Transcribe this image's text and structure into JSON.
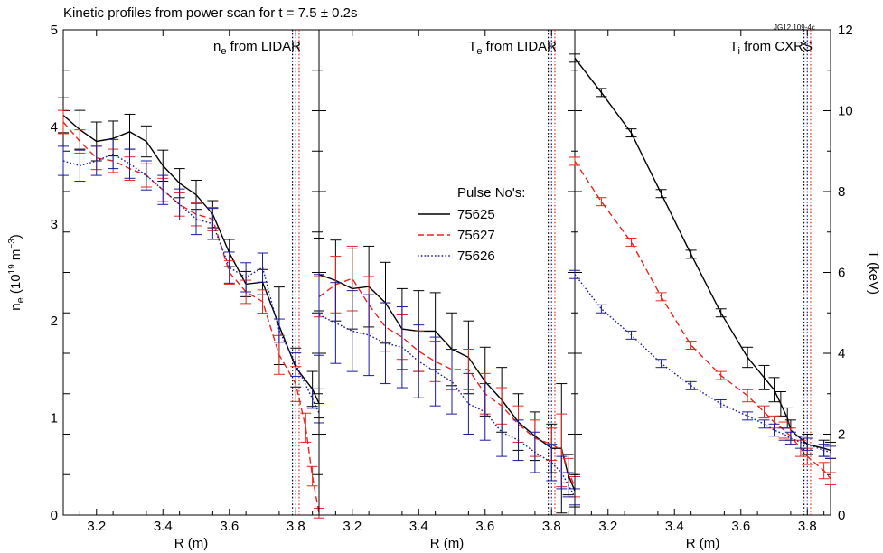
{
  "title": "Kinetic profiles from power scan for t = 7.5 ± 0.2s",
  "figure_tag": "JG12.109-4c",
  "legend": {
    "title": "Pulse No's:",
    "entries": [
      {
        "label": "75625",
        "color": "#000000",
        "dash": "solid"
      },
      {
        "label": "75627",
        "color": "#e8241c",
        "dash": "dashed"
      },
      {
        "label": "75626",
        "color": "#1a1aa0",
        "dash": "dotted"
      }
    ]
  },
  "chart_data": [
    {
      "type": "line",
      "title": "n_e from LIDAR",
      "title_main": "n",
      "title_sub": "e",
      "title_rest": " from LIDAR",
      "xlabel": "R (m)",
      "ylabel": "n_e (10^19 m^-3)",
      "ylabel_parts": {
        "n": "n",
        "sub": "e",
        "mid": " (10",
        "sup1": "19",
        "mid2": " m",
        "sup2": "−3",
        "end": ")"
      },
      "xlim": [
        3.1,
        3.87
      ],
      "ylim": [
        0,
        5
      ],
      "xticks": [
        3.2,
        3.4,
        3.6,
        3.8
      ],
      "xtick_labels": [
        "3.2",
        "3.4",
        "3.6",
        "3.8"
      ],
      "yticks": [
        0,
        1,
        2,
        3,
        4,
        5
      ],
      "ytick_labels": [
        "0",
        "1",
        "2",
        "3",
        "4",
        "5"
      ],
      "vlines": [
        3.79,
        3.8,
        3.81
      ],
      "series": [
        {
          "name": "75625",
          "x": [
            3.1,
            3.15,
            3.2,
            3.25,
            3.3,
            3.35,
            3.4,
            3.45,
            3.5,
            3.55,
            3.6,
            3.65,
            3.7,
            3.75,
            3.8,
            3.85,
            3.87
          ],
          "y": [
            4.12,
            3.97,
            3.85,
            3.88,
            3.95,
            3.85,
            3.6,
            3.42,
            3.3,
            3.1,
            2.7,
            2.38,
            2.4,
            1.95,
            1.52,
            1.3,
            1.15
          ],
          "err": [
            0.18,
            0.2,
            0.2,
            0.18,
            0.18,
            0.16,
            0.16,
            0.15,
            0.15,
            0.14,
            0.14,
            0.13,
            0.13,
            0.4,
            0.2,
            0.18,
            0.15
          ]
        },
        {
          "name": "75627",
          "x": [
            3.1,
            3.15,
            3.2,
            3.25,
            3.3,
            3.35,
            3.4,
            3.45,
            3.5,
            3.55,
            3.6,
            3.65,
            3.7,
            3.75,
            3.8,
            3.83,
            3.85,
            3.87
          ],
          "y": [
            4.05,
            3.85,
            3.68,
            3.65,
            3.57,
            3.5,
            3.35,
            3.2,
            3.1,
            3.05,
            2.5,
            2.3,
            2.2,
            1.65,
            1.35,
            0.9,
            0.4,
            0.02
          ],
          "err": [
            0.12,
            0.12,
            0.12,
            0.12,
            0.12,
            0.12,
            0.12,
            0.12,
            0.12,
            0.12,
            0.12,
            0.12,
            0.12,
            0.2,
            0.18,
            0.15,
            0.1,
            0.05
          ]
        },
        {
          "name": "75626",
          "x": [
            3.1,
            3.15,
            3.2,
            3.25,
            3.3,
            3.35,
            3.4,
            3.45,
            3.5,
            3.55,
            3.6,
            3.65,
            3.7,
            3.75,
            3.8,
            3.85,
            3.87
          ],
          "y": [
            3.65,
            3.6,
            3.65,
            3.72,
            3.62,
            3.5,
            3.35,
            3.2,
            3.05,
            3.0,
            2.55,
            2.45,
            2.55,
            1.9,
            1.55,
            1.2,
            1.05
          ],
          "err": [
            0.15,
            0.16,
            0.15,
            0.15,
            0.15,
            0.15,
            0.15,
            0.16,
            0.16,
            0.16,
            0.16,
            0.15,
            0.15,
            0.12,
            0.12,
            0.1,
            0.1
          ]
        }
      ]
    },
    {
      "type": "line",
      "title": "T_e from LIDAR",
      "title_main": "T",
      "title_sub": "e",
      "title_rest": " from LIDAR",
      "xlabel": "R (m)",
      "xlim": [
        3.1,
        3.87
      ],
      "ylim": [
        0,
        12
      ],
      "xticks": [
        3.2,
        3.4,
        3.6,
        3.8
      ],
      "xtick_labels": [
        "3.2",
        "3.4",
        "3.6",
        "3.8"
      ],
      "vlines": [
        3.79,
        3.8,
        3.81
      ],
      "series": [
        {
          "name": "75625",
          "x": [
            3.1,
            3.15,
            3.2,
            3.25,
            3.3,
            3.35,
            3.4,
            3.45,
            3.5,
            3.55,
            3.6,
            3.65,
            3.7,
            3.75,
            3.8,
            3.83,
            3.85,
            3.87
          ],
          "y": [
            5.95,
            5.8,
            5.6,
            5.65,
            5.25,
            4.6,
            4.55,
            4.55,
            4.1,
            3.9,
            3.3,
            2.85,
            2.3,
            1.95,
            1.65,
            1.65,
            1.0,
            0.6
          ],
          "err": [
            0.9,
            1.0,
            1.0,
            1.0,
            1.0,
            1.0,
            1.0,
            0.95,
            0.9,
            0.9,
            0.85,
            0.8,
            0.7,
            0.6,
            0.6,
            1.6,
            0.5,
            0.4
          ]
        },
        {
          "name": "75627",
          "x": [
            3.1,
            3.15,
            3.2,
            3.25,
            3.3,
            3.35,
            3.4,
            3.45,
            3.5,
            3.55,
            3.6,
            3.65,
            3.7,
            3.75,
            3.8,
            3.83,
            3.85,
            3.87
          ],
          "y": [
            5.4,
            5.7,
            5.85,
            5.2,
            4.65,
            4.4,
            4.05,
            3.8,
            3.6,
            3.6,
            3.0,
            2.7,
            2.25,
            1.9,
            1.75,
            1.6,
            1.1,
            0.7
          ],
          "err": [
            0.5,
            0.7,
            0.8,
            0.7,
            0.6,
            0.55,
            0.5,
            0.5,
            0.5,
            0.5,
            0.5,
            0.45,
            0.45,
            0.45,
            0.4,
            0.9,
            0.3,
            0.25
          ]
        },
        {
          "name": "75626",
          "x": [
            3.1,
            3.15,
            3.2,
            3.25,
            3.3,
            3.35,
            3.4,
            3.45,
            3.5,
            3.55,
            3.6,
            3.65,
            3.7,
            3.75,
            3.8,
            3.83,
            3.85,
            3.87
          ],
          "y": [
            4.95,
            4.75,
            4.55,
            4.45,
            4.25,
            4.15,
            3.8,
            3.55,
            3.3,
            2.75,
            2.55,
            2.05,
            1.85,
            1.55,
            1.3,
            1.05,
            0.75,
            0.45
          ],
          "err": [
            1.0,
            1.0,
            1.0,
            1.0,
            1.0,
            1.0,
            0.9,
            0.85,
            0.8,
            0.75,
            0.7,
            0.6,
            0.5,
            0.5,
            0.45,
            0.4,
            0.3,
            0.2
          ]
        }
      ]
    },
    {
      "type": "line",
      "title": "T_i from CXRS",
      "title_main": "T",
      "title_sub": "i",
      "title_rest": " from CXRS",
      "xlabel": "R (m)",
      "ylabel": "T (keV)",
      "xlim": [
        3.1,
        3.87
      ],
      "ylim": [
        0,
        12
      ],
      "xticks": [
        3.2,
        3.4,
        3.6,
        3.8
      ],
      "xtick_labels": [
        "3.2",
        "3.4",
        "3.6",
        "3.8"
      ],
      "yticks": [
        0,
        2,
        4,
        6,
        8,
        10,
        12
      ],
      "ytick_labels": [
        "0",
        "2",
        "4",
        "6",
        "8",
        "10",
        "12"
      ],
      "vlines": [
        3.79,
        3.8,
        3.81
      ],
      "series": [
        {
          "name": "75625",
          "x": [
            3.1,
            3.18,
            3.27,
            3.36,
            3.45,
            3.54,
            3.62,
            3.67,
            3.7,
            3.72,
            3.74,
            3.75,
            3.8,
            3.85,
            3.87
          ],
          "y": [
            11.3,
            10.45,
            9.45,
            7.95,
            6.45,
            5.0,
            3.9,
            3.4,
            3.1,
            2.75,
            2.4,
            2.1,
            1.75,
            1.65,
            1.6
          ],
          "err": [
            0.1,
            0.1,
            0.1,
            0.1,
            0.1,
            0.1,
            0.25,
            0.3,
            0.3,
            0.3,
            0.25,
            0.25,
            0.25,
            0.2,
            0.2
          ]
        },
        {
          "name": "75627",
          "x": [
            3.1,
            3.18,
            3.27,
            3.36,
            3.45,
            3.54,
            3.62,
            3.67,
            3.7,
            3.73,
            3.75,
            3.78,
            3.8,
            3.85,
            3.87
          ],
          "y": [
            8.75,
            7.75,
            6.75,
            5.4,
            4.2,
            3.45,
            2.95,
            2.55,
            2.3,
            2.1,
            1.95,
            1.65,
            1.45,
            1.1,
            0.9
          ],
          "err": [
            0.1,
            0.1,
            0.1,
            0.1,
            0.1,
            0.1,
            0.15,
            0.15,
            0.15,
            0.2,
            0.2,
            0.2,
            0.2,
            0.2,
            0.15
          ]
        },
        {
          "name": "75626",
          "x": [
            3.1,
            3.18,
            3.27,
            3.36,
            3.45,
            3.54,
            3.62,
            3.67,
            3.7,
            3.73,
            3.75,
            3.78,
            3.8,
            3.85,
            3.87
          ],
          "y": [
            5.95,
            5.1,
            4.45,
            3.75,
            3.2,
            2.75,
            2.45,
            2.25,
            2.1,
            2.0,
            1.9,
            1.8,
            1.75,
            1.6,
            1.55
          ],
          "err": [
            0.1,
            0.1,
            0.1,
            0.1,
            0.1,
            0.1,
            0.1,
            0.1,
            0.15,
            0.15,
            0.15,
            0.15,
            0.15,
            0.15,
            0.15
          ]
        }
      ]
    }
  ]
}
